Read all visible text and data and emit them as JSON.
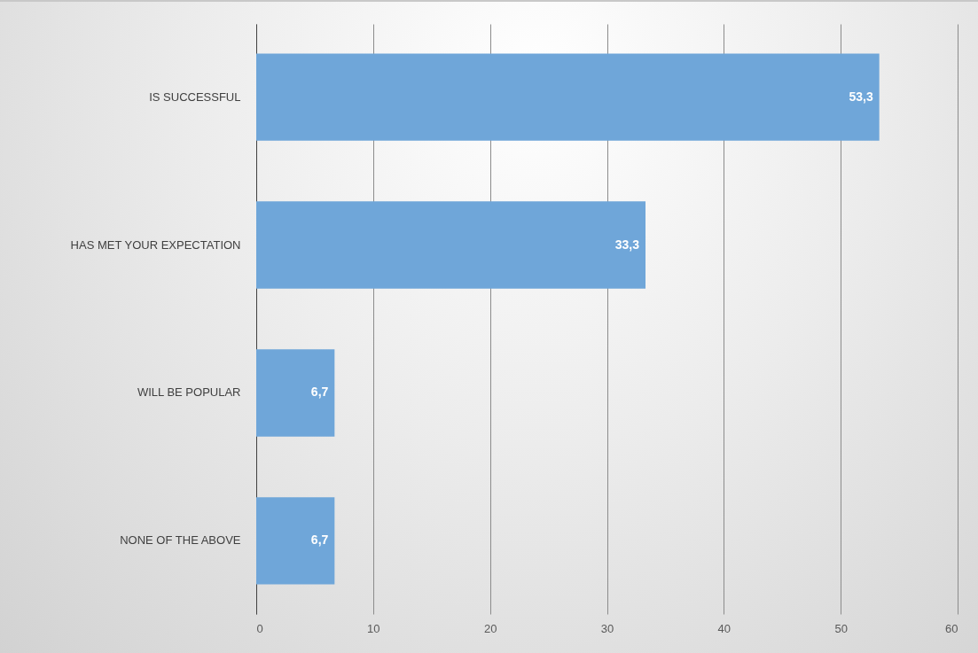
{
  "chart_data": {
    "type": "bar",
    "orientation": "horizontal",
    "categories": [
      "IS SUCCESSFUL",
      "HAS MET YOUR EXPECTATION",
      "WILL BE POPULAR",
      "NONE OF THE ABOVE"
    ],
    "values": [
      53.3,
      33.3,
      6.7,
      6.7
    ],
    "value_labels": [
      "53,3",
      "33,3",
      "6,7",
      "6,7"
    ],
    "color": "#6fa6d9",
    "xlim": [
      0,
      60
    ],
    "xticks": [
      0,
      10,
      20,
      30,
      40,
      50,
      60
    ],
    "grid": "x"
  }
}
